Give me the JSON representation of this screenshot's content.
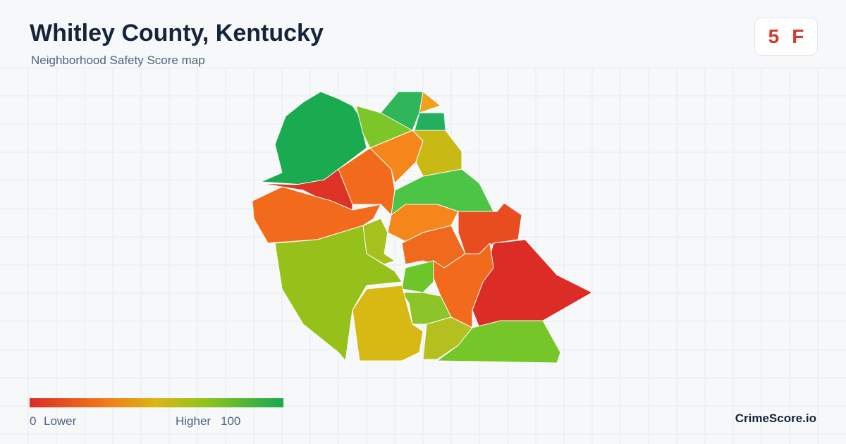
{
  "header": {
    "title": "Whitley County, Kentucky",
    "subtitle": "Neighborhood Safety Score map"
  },
  "badge": {
    "score": 5,
    "grade": "F"
  },
  "legend": {
    "min": 0,
    "min_label": "Lower",
    "max_label": "Higher",
    "max": 100
  },
  "brand": "CrimeScore.io"
}
